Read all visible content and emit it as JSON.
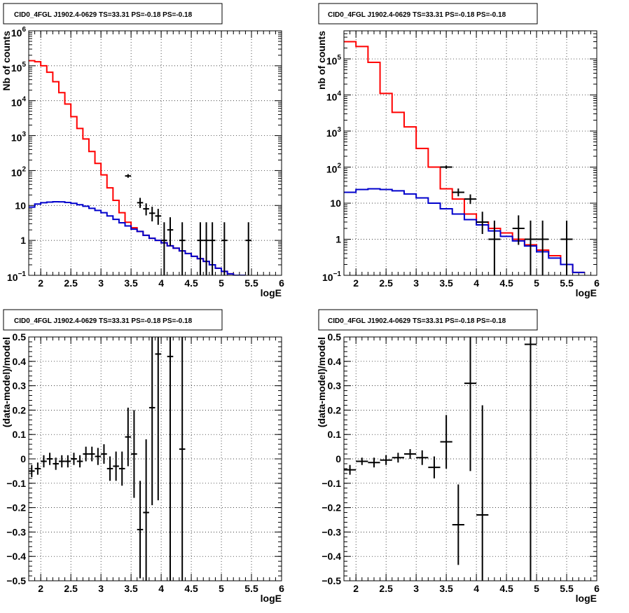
{
  "colors": {
    "model_total": "#ff0000",
    "model_background": "#0000cc",
    "data": "#000000",
    "grid": "#000000"
  },
  "chart_data": [
    {
      "type": "line",
      "pad": "top-left",
      "title": "CID0_4FGL J1902.4-0629 TS=33.31 PS=-0.18 PS=-0.18",
      "xlabel": "logE",
      "ylabel": "Nb of counts",
      "xlim": [
        1.8,
        6.0
      ],
      "ylim": [
        0.1,
        1000000
      ],
      "yscale": "log",
      "grid": true,
      "x_ticks": [
        2,
        2.5,
        3,
        3.5,
        4,
        4.5,
        5,
        5.5,
        6
      ],
      "x_tick_labels": [
        "2",
        "2.5",
        "3",
        "3.5",
        "4",
        "4.5",
        "5",
        "5.5",
        "6"
      ],
      "y_ticks": [
        0.1,
        1,
        10,
        100,
        1000,
        10000,
        100000,
        1000000
      ],
      "y_tick_labels": [
        {
          "base": "10",
          "exp": "−1"
        },
        {
          "base": "1",
          "exp": ""
        },
        {
          "base": "10",
          "exp": ""
        },
        {
          "base": "10",
          "exp": "2"
        },
        {
          "base": "10",
          "exp": "3"
        },
        {
          "base": "10",
          "exp": "4"
        },
        {
          "base": "10",
          "exp": "5"
        },
        {
          "base": "10",
          "exp": "6"
        }
      ],
      "bin_edges": [
        1.8,
        1.9,
        2.0,
        2.1,
        2.2,
        2.3,
        2.4,
        2.5,
        2.6,
        2.7,
        2.8,
        2.9,
        3.0,
        3.1,
        3.2,
        3.3,
        3.4,
        3.5,
        3.6,
        3.7,
        3.8,
        3.9,
        4.0,
        4.1,
        4.2,
        4.3,
        4.4,
        4.5,
        4.6,
        4.7,
        4.8,
        4.9,
        5.0,
        5.1,
        5.2,
        5.3,
        5.4,
        5.5,
        5.6,
        5.7,
        5.8,
        5.9,
        6.0
      ],
      "series": [
        {
          "role": "model_total",
          "values": [
            140000,
            130000,
            100000,
            65000,
            35000,
            17000,
            8000,
            3500,
            1600,
            800,
            350,
            160,
            75,
            32,
            14,
            6.2,
            3.3,
            2.3,
            1.8,
            1.4,
            1.15,
            1.0,
            0.85,
            0.7,
            0.6,
            0.5,
            0.42,
            0.35,
            0.3,
            0.25,
            0.2,
            0.16,
            0.13,
            0.11,
            0.1,
            0.09
          ]
        },
        {
          "role": "model_background",
          "values": [
            9,
            11,
            12,
            12.5,
            12.8,
            12.7,
            12.2,
            11.5,
            10.5,
            9.5,
            8.3,
            7.2,
            6.2,
            5,
            4,
            3.2,
            2.6,
            2.1,
            1.8,
            1.4,
            1.15,
            1.0,
            0.85,
            0.7,
            0.6,
            0.5,
            0.42,
            0.35,
            0.3,
            0.25,
            0.2,
            0.16,
            0.13,
            0.11,
            0.1,
            0.09
          ]
        },
        {
          "role": "data",
          "x": [
            3.45,
            3.65,
            3.75,
            3.85,
            3.95,
            4.05,
            4.15,
            4.35,
            4.65,
            4.75,
            4.85,
            5.05,
            5.45
          ],
          "y": [
            70,
            12,
            8,
            6,
            5,
            1,
            2,
            1,
            1,
            1,
            1,
            1,
            1
          ],
          "yerr_lo": [
            8,
            3.5,
            2.8,
            2.5,
            2.2,
            0.9,
            1.3,
            0.9,
            0.9,
            0.9,
            0.9,
            0.9,
            0.9
          ],
          "yerr_hi": [
            9,
            4.5,
            3.5,
            3.2,
            3,
            2.3,
            2.6,
            2.3,
            2.3,
            2.3,
            2.3,
            2.3,
            2.3
          ]
        }
      ]
    },
    {
      "type": "line",
      "pad": "top-right",
      "title": "CID0_4FGL J1902.4-0629 TS=33.31 PS=-0.18 PS=-0.18",
      "xlabel": "logE",
      "ylabel": "nb of counts",
      "xlim": [
        1.8,
        6.0
      ],
      "ylim": [
        0.1,
        600000
      ],
      "yscale": "log",
      "grid": true,
      "x_ticks": [
        2,
        2.5,
        3,
        3.5,
        4,
        4.5,
        5,
        5.5,
        6
      ],
      "x_tick_labels": [
        "2",
        "2.5",
        "3",
        "3.5",
        "4",
        "4.5",
        "5",
        "5.5",
        "6"
      ],
      "y_ticks": [
        0.1,
        1,
        10,
        100,
        1000,
        10000,
        100000
      ],
      "y_tick_labels": [
        {
          "base": "10",
          "exp": "−1"
        },
        {
          "base": "1",
          "exp": ""
        },
        {
          "base": "10",
          "exp": ""
        },
        {
          "base": "10",
          "exp": "2"
        },
        {
          "base": "10",
          "exp": "3"
        },
        {
          "base": "10",
          "exp": "4"
        },
        {
          "base": "10",
          "exp": "5"
        }
      ],
      "bin_edges": [
        1.8,
        2.0,
        2.2,
        2.4,
        2.6,
        2.8,
        3.0,
        3.2,
        3.4,
        3.6,
        3.8,
        4.0,
        4.2,
        4.4,
        4.6,
        4.8,
        5.0,
        5.2,
        5.4,
        5.6,
        5.8,
        6.0
      ],
      "series": [
        {
          "role": "model_total",
          "values": [
            300000,
            220000,
            80000,
            11000,
            3300,
            1300,
            330,
            100,
            25,
            13,
            5,
            3,
            2,
            1.5,
            1,
            0.7,
            0.5,
            0.35,
            0.2,
            0.12
          ]
        },
        {
          "role": "model_background",
          "values": [
            20,
            24,
            25,
            24,
            22,
            18,
            14,
            10,
            7,
            5,
            3.5,
            2.5,
            1.7,
            1.2,
            0.9,
            0.65,
            0.45,
            0.3,
            0.2,
            0.12
          ]
        },
        {
          "role": "data",
          "x": [
            3.5,
            3.7,
            3.9,
            4.1,
            4.3,
            4.7,
            4.9,
            5.1,
            5.5
          ],
          "y": [
            100,
            20,
            13,
            3,
            1,
            2,
            1,
            1,
            1
          ],
          "yerr_lo": [
            10,
            4.5,
            3.5,
            1.6,
            0.9,
            1.3,
            0.9,
            0.9,
            0.9
          ],
          "yerr_hi": [
            11,
            5.5,
            4.5,
            2.8,
            2.3,
            2.6,
            2.3,
            2.3,
            2.3
          ]
        }
      ]
    },
    {
      "type": "scatter",
      "pad": "bottom-left",
      "title": "CID0_4FGL J1902.4-0629 TS=33.31 PS=-0.18 PS=-0.18",
      "xlabel": "logE",
      "ylabel": "(data-model)/model",
      "xlim": [
        1.8,
        6.0
      ],
      "ylim": [
        -0.5,
        0.5
      ],
      "yscale": "linear",
      "grid": true,
      "x_ticks": [
        2,
        2.5,
        3,
        3.5,
        4,
        4.5,
        5,
        5.5,
        6
      ],
      "x_tick_labels": [
        "2",
        "2.5",
        "3",
        "3.5",
        "4",
        "4.5",
        "5",
        "5.5",
        "6"
      ],
      "y_ticks": [
        -0.5,
        -0.4,
        -0.3,
        -0.2,
        -0.1,
        0,
        0.1,
        0.2,
        0.3,
        0.4,
        0.5
      ],
      "y_tick_labels": [
        "−0.5",
        "−0.4",
        "−0.3",
        "−0.2",
        "−0.1",
        "0",
        "0.1",
        "0.2",
        "0.3",
        "0.4",
        "0.5"
      ],
      "series": [
        {
          "role": "data",
          "xhalf": 0.05,
          "x": [
            1.85,
            1.95,
            2.05,
            2.15,
            2.25,
            2.35,
            2.45,
            2.55,
            2.65,
            2.75,
            2.85,
            2.95,
            3.05,
            3.15,
            3.25,
            3.35,
            3.45,
            3.55,
            3.65,
            3.75,
            3.85,
            3.95,
            4.15,
            4.35
          ],
          "y": [
            -0.05,
            -0.04,
            -0.01,
            0,
            -0.02,
            -0.01,
            -0.01,
            0,
            -0.01,
            0.02,
            0.02,
            0.01,
            0.02,
            -0.04,
            -0.03,
            -0.04,
            0.09,
            0.02,
            -0.29,
            -0.22,
            0.21,
            0.43,
            0.42,
            0.04
          ],
          "yerr": [
            0.025,
            0.025,
            0.025,
            0.025,
            0.025,
            0.025,
            0.025,
            0.025,
            0.025,
            0.03,
            0.03,
            0.035,
            0.04,
            0.05,
            0.06,
            0.07,
            0.12,
            0.18,
            0.2,
            0.3,
            0.4,
            0.6,
            1.0,
            1.0
          ]
        }
      ]
    },
    {
      "type": "scatter",
      "pad": "bottom-right",
      "title": "CID0_4FGL J1902.4-0629 TS=33.31 PS=-0.18 PS=-0.18",
      "xlabel": "logE",
      "ylabel": "(data-model)/model",
      "xlim": [
        1.8,
        6.0
      ],
      "ylim": [
        -0.5,
        0.5
      ],
      "yscale": "linear",
      "grid": true,
      "x_ticks": [
        2,
        2.5,
        3,
        3.5,
        4,
        4.5,
        5,
        5.5,
        6
      ],
      "x_tick_labels": [
        "2",
        "2.5",
        "3",
        "3.5",
        "4",
        "4.5",
        "5",
        "5.5",
        "6"
      ],
      "y_ticks": [
        -0.5,
        -0.4,
        -0.3,
        -0.2,
        -0.1,
        0,
        0.1,
        0.2,
        0.3,
        0.4,
        0.5
      ],
      "y_tick_labels": [
        "−0.5",
        "−0.4",
        "−0.3",
        "−0.2",
        "−0.1",
        "0",
        "0.1",
        "0.2",
        "0.3",
        "0.4",
        "0.5"
      ],
      "series": [
        {
          "role": "data",
          "xhalf": 0.1,
          "x": [
            1.9,
            2.1,
            2.3,
            2.5,
            2.7,
            2.9,
            3.1,
            3.3,
            3.5,
            3.7,
            3.9,
            4.1,
            4.9
          ],
          "y": [
            -0.045,
            -0.01,
            -0.015,
            -0.005,
            0.005,
            0.02,
            0.005,
            -0.035,
            0.07,
            -0.27,
            0.31,
            -0.23,
            0.47
          ],
          "yerr": [
            0.02,
            0.015,
            0.02,
            0.02,
            0.02,
            0.02,
            0.03,
            0.045,
            0.11,
            0.165,
            0.36,
            0.45,
            1.0
          ]
        }
      ]
    }
  ]
}
